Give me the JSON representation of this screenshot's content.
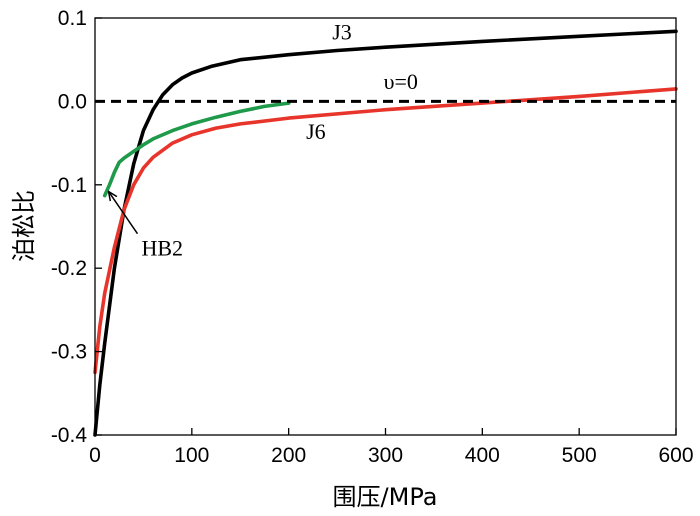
{
  "chart_data": {
    "type": "line",
    "title": "",
    "xlabel": "围压/MPa",
    "ylabel": "泊松比",
    "xlim": [
      0,
      600
    ],
    "ylim": [
      -0.4,
      0.1
    ],
    "xticks": [
      0,
      100,
      200,
      300,
      400,
      500,
      600
    ],
    "xtick_labels": [
      "0",
      "100",
      "200",
      "300",
      "400",
      "500",
      "600"
    ],
    "yticks": [
      0.1,
      0.0,
      -0.1,
      -0.2,
      -0.3,
      -0.4
    ],
    "ytick_labels": [
      "0.1",
      "0.0",
      "-0.1",
      "-0.2",
      "-0.3",
      "-0.4"
    ],
    "grid": false,
    "series": [
      {
        "name": "J3",
        "color": "#000000",
        "x": [
          0,
          5,
          10,
          20,
          30,
          40,
          50,
          60,
          70,
          80,
          90,
          100,
          120,
          150,
          200,
          250,
          300,
          400,
          500,
          600
        ],
        "y": [
          -0.4,
          -0.34,
          -0.29,
          -0.2,
          -0.13,
          -0.075,
          -0.035,
          -0.01,
          0.008,
          0.02,
          0.028,
          0.034,
          0.042,
          0.05,
          0.056,
          0.061,
          0.065,
          0.072,
          0.078,
          0.084
        ]
      },
      {
        "name": "J6",
        "color": "#e8352b",
        "x": [
          0,
          5,
          10,
          20,
          30,
          40,
          50,
          60,
          80,
          100,
          125,
          150,
          200,
          300,
          400,
          500,
          600
        ],
        "y": [
          -0.325,
          -0.27,
          -0.23,
          -0.175,
          -0.13,
          -0.1,
          -0.08,
          -0.067,
          -0.05,
          -0.04,
          -0.032,
          -0.027,
          -0.02,
          -0.01,
          -0.002,
          0.006,
          0.015
        ]
      },
      {
        "name": "HB2",
        "color": "#1e9a4a",
        "x": [
          10,
          15,
          20,
          25,
          30,
          40,
          50,
          60,
          80,
          100,
          125,
          150,
          175,
          200
        ],
        "y": [
          -0.113,
          -0.1,
          -0.085,
          -0.073,
          -0.068,
          -0.06,
          -0.052,
          -0.045,
          -0.035,
          -0.027,
          -0.019,
          -0.012,
          -0.006,
          -0.002
        ]
      },
      {
        "name": "υ=0",
        "color": "#000000",
        "style": "dashed",
        "x": [
          0,
          600
        ],
        "y": [
          0,
          0
        ]
      }
    ],
    "annotations": [
      {
        "text": "J3",
        "x": 245,
        "y": 0.074
      },
      {
        "text": "υ=0",
        "x": 298,
        "y": 0.015
      },
      {
        "text": "J6",
        "x": 218,
        "y": -0.045
      },
      {
        "text": "HB2",
        "x": 48,
        "y": -0.185,
        "arrow_to": [
          14,
          -0.108
        ]
      }
    ]
  }
}
